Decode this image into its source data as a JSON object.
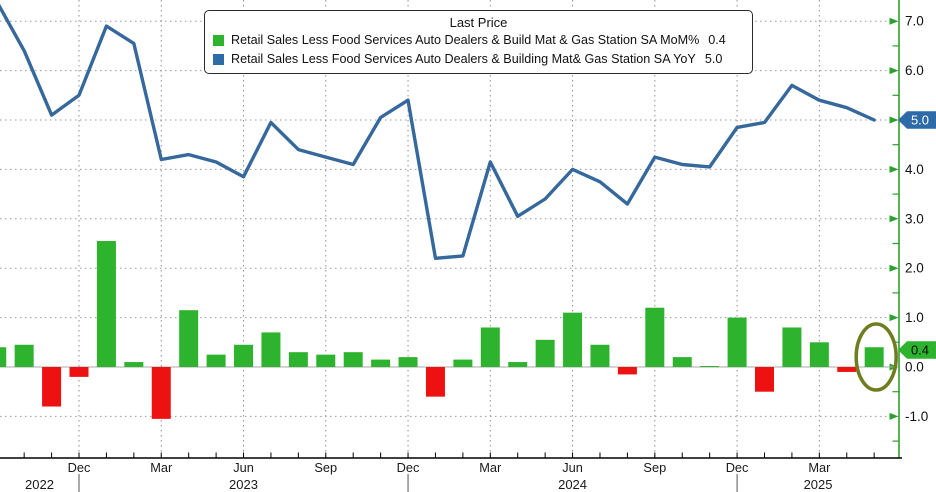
{
  "legend": {
    "title": "Last Price",
    "series": [
      {
        "label": "Retail Sales Less Food Services Auto Dealers & Build Mat & Gas Station SA MoM%",
        "value": "0.4"
      },
      {
        "label": "Retail Sales Less Food Services Auto Dealers & Building Mat& Gas Station SA YoY",
        "value": "5.0"
      }
    ]
  },
  "colors": {
    "bar_positive": "#2db32d",
    "bar_negative": "#ee1111",
    "line_blue": "#35689d",
    "axis_green": "#2ca02c",
    "tag_blue_bg": "#2d6ba8",
    "tag_green_bg": "#2db32d",
    "grid_gray": "#999999",
    "highlight_ellipse": "#6f7d1e",
    "text": "#111111"
  },
  "chart_data": {
    "type": "combo",
    "title": "Last Price",
    "categories": [
      "2022-09",
      "2022-10",
      "2022-11",
      "2022-12",
      "2023-01",
      "2023-02",
      "2023-03",
      "2023-04",
      "2023-05",
      "2023-06",
      "2023-07",
      "2023-08",
      "2023-09",
      "2023-10",
      "2023-11",
      "2023-12",
      "2024-01",
      "2024-02",
      "2024-03",
      "2024-04",
      "2024-05",
      "2024-06",
      "2024-07",
      "2024-08",
      "2024-09",
      "2024-10",
      "2024-11",
      "2024-12",
      "2025-01",
      "2025-02",
      "2025-03",
      "2025-04",
      "2025-05"
    ],
    "series": [
      {
        "name": "Retail Sales Less Food Services Auto Dealers & Build Mat & Gas Station SA MoM%",
        "type": "bar",
        "last_value": 0.4,
        "values": [
          0.4,
          0.45,
          -0.8,
          -0.2,
          2.55,
          0.1,
          -1.05,
          1.15,
          0.25,
          0.45,
          0.7,
          0.3,
          0.25,
          0.3,
          0.15,
          0.2,
          -0.6,
          0.15,
          0.8,
          0.1,
          0.55,
          1.1,
          0.45,
          -0.15,
          1.2,
          0.2,
          0.02,
          1.0,
          -0.5,
          0.8,
          0.5,
          -0.1,
          0.4
        ]
      },
      {
        "name": "Retail Sales Less Food Services Auto Dealers & Building Mat& Gas Station SA YoY",
        "type": "line",
        "last_value": 5.0,
        "values": [
          7.4,
          6.4,
          5.1,
          5.5,
          6.9,
          6.55,
          4.2,
          4.3,
          4.15,
          3.85,
          4.95,
          4.4,
          4.25,
          4.1,
          5.05,
          5.4,
          2.2,
          2.25,
          4.15,
          3.05,
          3.4,
          4.0,
          3.75,
          3.3,
          4.25,
          4.1,
          4.05,
          4.85,
          4.95,
          5.7,
          5.4,
          5.25,
          5.0
        ]
      }
    ],
    "ylim": [
      -1.5,
      7.45
    ],
    "y_ticks": [
      7.0,
      6.0,
      5.0,
      4.0,
      3.0,
      2.0,
      1.0,
      0.0,
      -1.0
    ],
    "y_minor_ticks": [
      6.5,
      5.5,
      4.5,
      3.5,
      2.5,
      1.5,
      0.5,
      -0.5,
      -1.5
    ],
    "x_tick_indices": [
      3,
      6,
      9,
      12,
      15,
      18,
      21,
      24,
      27,
      30
    ],
    "x_tick_labels": [
      "Dec",
      "Mar",
      "Jun",
      "Sep",
      "Dec",
      "Mar",
      "Jun",
      "Sep",
      "Dec",
      "Mar"
    ],
    "year_labels": [
      "2022",
      "2023",
      "2024",
      "2025"
    ],
    "year_boundary_indices": [
      3,
      15,
      27
    ],
    "grid": "dotted",
    "legend_position": "top-center",
    "axis_side": "right",
    "axis_tags": [
      {
        "text": "5.0",
        "value": 5.0,
        "style": "blue"
      },
      {
        "text": "0.4",
        "value": 0.4,
        "style": "green"
      }
    ],
    "highlight": {
      "category": "2025-05",
      "shape": "ellipse"
    }
  }
}
